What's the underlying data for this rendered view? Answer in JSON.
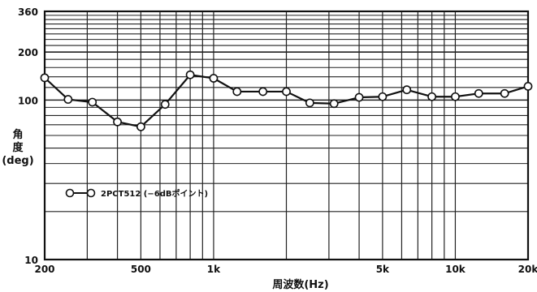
{
  "chart_data": {
    "type": "line",
    "xscale": "log",
    "yscale": "log",
    "xlim": [
      200,
      20000
    ],
    "ylim": [
      10,
      360
    ],
    "xlabel": "周波数(Hz)",
    "ylabel": "角\n度\n(deg)",
    "x_tick_labels": [
      {
        "value": 200,
        "label": "200"
      },
      {
        "value": 500,
        "label": "500"
      },
      {
        "value": 1000,
        "label": "1k"
      },
      {
        "value": 5000,
        "label": "5k"
      },
      {
        "value": 10000,
        "label": "10k"
      },
      {
        "value": 20000,
        "label": "20k"
      }
    ],
    "y_tick_labels": [
      {
        "value": 10,
        "label": "10"
      },
      {
        "value": 100,
        "label": "100"
      },
      {
        "value": 200,
        "label": "200"
      },
      {
        "value": 360,
        "label": "360"
      }
    ],
    "grid": true,
    "legend": {
      "position": "middle-left",
      "text": "2PCT512 (−6dBポイント)"
    },
    "series": [
      {
        "name": "2PCT512",
        "marker": "open-circle",
        "x": [
          200,
          250,
          315,
          400,
          500,
          630,
          800,
          1000,
          1250,
          1600,
          2000,
          2500,
          3150,
          4000,
          5000,
          6300,
          8000,
          10000,
          12500,
          16000,
          20000
        ],
        "values": [
          138,
          101,
          97,
          73,
          68,
          94,
          144,
          137,
          113,
          113,
          113,
          96,
          95,
          104,
          105,
          116,
          105,
          105,
          110,
          110,
          122
        ]
      }
    ]
  }
}
